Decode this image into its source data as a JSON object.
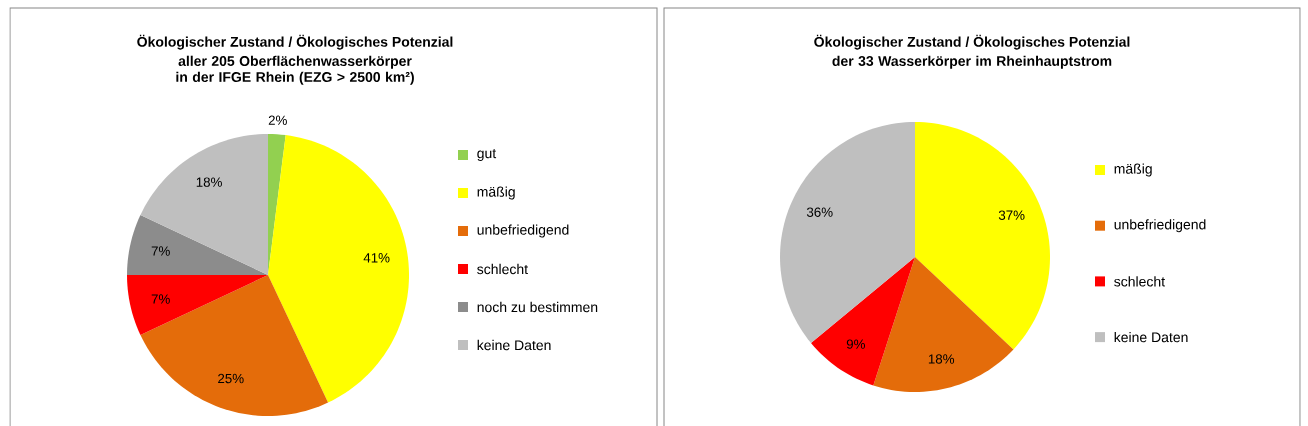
{
  "chart_data": [
    {
      "type": "pie",
      "title": "Ökologischer Zustand / Ökologisches Potenzial",
      "subtitle": "aller 205 Oberflächenwasserkörper in der IFGE Rhein (EZG > 2500 km²)",
      "categories": [
        "gut",
        "mäßig",
        "unbefriedigend",
        "schlecht",
        "noch zu bestimmen",
        "keine Daten"
      ],
      "values": [
        2,
        41,
        25,
        7,
        7,
        18
      ],
      "value_labels": [
        "2%",
        "41%",
        "25%",
        "7%",
        "7%",
        "18%"
      ],
      "colors": [
        "#92d050",
        "#ffff00",
        "#e46c0a",
        "#ff0000",
        "#8c8c8c",
        "#bfbfbf"
      ],
      "legend": "right"
    },
    {
      "type": "pie",
      "title": "Ökologischer Zustand / Ökologisches Potenzial",
      "subtitle": "der 33 Wasserkörper im Rheinhauptstrom",
      "categories": [
        "mäßig",
        "unbefriedigend",
        "schlecht",
        "keine Daten"
      ],
      "values": [
        37,
        18,
        9,
        36
      ],
      "value_labels": [
        "37%",
        "18%",
        "9%",
        "36%"
      ],
      "colors": [
        "#ffff00",
        "#e46c0a",
        "#ff0000",
        "#bfbfbf"
      ],
      "legend": "right"
    }
  ]
}
